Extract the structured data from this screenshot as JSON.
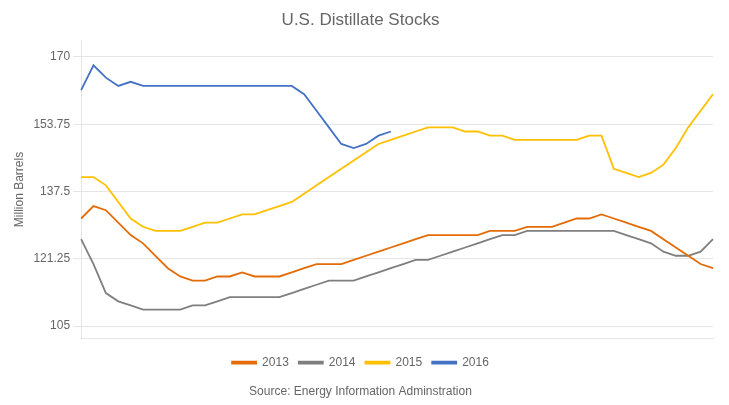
{
  "chart_data": {
    "type": "line",
    "title": "U.S. Distillate Stocks",
    "y_label": "Million Barrels",
    "annotation": "Source: Energy Information Adminstration",
    "categories": [
      null,
      null,
      null,
      null,
      null,
      null,
      null,
      null,
      null,
      null,
      null,
      null,
      null,
      null,
      null,
      null,
      null,
      null,
      null,
      null,
      null,
      null,
      null,
      null,
      null,
      null,
      null,
      null,
      null,
      null,
      null,
      null,
      null,
      null,
      null,
      null,
      null,
      null,
      null,
      null,
      null,
      null,
      null,
      null,
      null,
      null,
      null,
      null,
      null,
      null,
      null,
      null
    ],
    "series": [
      {
        "name": "2013",
        "color": "#e36c09",
        "values": [
          131,
          134,
          133,
          130,
          127,
          125,
          122,
          119,
          117,
          116,
          116,
          117,
          117,
          118,
          117,
          117,
          117,
          118,
          119,
          120,
          120,
          120,
          121,
          122,
          123,
          124,
          125,
          126,
          127,
          127,
          127,
          127,
          127,
          128,
          128,
          128,
          129,
          129,
          129,
          130,
          131,
          131,
          132,
          131,
          130,
          129,
          128,
          126,
          124,
          122,
          120,
          119
        ]
      },
      {
        "name": "2014",
        "color": "#7f7f7f",
        "values": [
          126,
          120,
          113,
          111,
          110,
          109,
          109,
          109,
          109,
          110,
          110,
          111,
          112,
          112,
          112,
          112,
          112,
          113,
          114,
          115,
          116,
          116,
          116,
          117,
          118,
          119,
          120,
          121,
          121,
          122,
          123,
          124,
          125,
          126,
          127,
          127,
          128,
          128,
          128,
          128,
          128,
          128,
          128,
          128,
          127,
          126,
          125,
          123,
          122,
          122,
          123,
          126
        ]
      },
      {
        "name": "2015",
        "color": "#ffc000",
        "values": [
          141,
          141,
          139,
          135,
          131,
          129,
          128,
          128,
          128,
          129,
          130,
          130,
          131,
          132,
          132,
          133,
          134,
          135,
          137,
          139,
          141,
          143,
          145,
          147,
          149,
          150,
          151,
          152,
          153,
          153,
          153,
          152,
          152,
          151,
          151,
          150,
          150,
          150,
          150,
          150,
          150,
          151,
          151,
          143,
          142,
          141,
          142,
          144,
          148,
          153,
          157,
          161
        ]
      },
      {
        "name": "2016",
        "color": "#4472c4",
        "values": [
          162,
          168,
          165,
          163,
          164,
          163,
          163,
          163,
          163,
          163,
          163,
          163,
          163,
          163,
          163,
          163,
          163,
          163,
          161,
          157,
          153,
          149,
          148,
          149,
          151,
          152,
          null,
          null,
          null,
          null,
          null,
          null,
          null,
          null,
          null,
          null,
          null,
          null,
          null,
          null,
          null,
          null,
          null,
          null,
          null,
          null,
          null,
          null,
          null,
          null,
          null,
          null
        ]
      }
    ],
    "ylim": [
      102,
      174
    ],
    "yticks": [
      105,
      121.25,
      137.5,
      153.75,
      170
    ],
    "grid": true,
    "legend": "bottom",
    "tick_labels": "y"
  }
}
